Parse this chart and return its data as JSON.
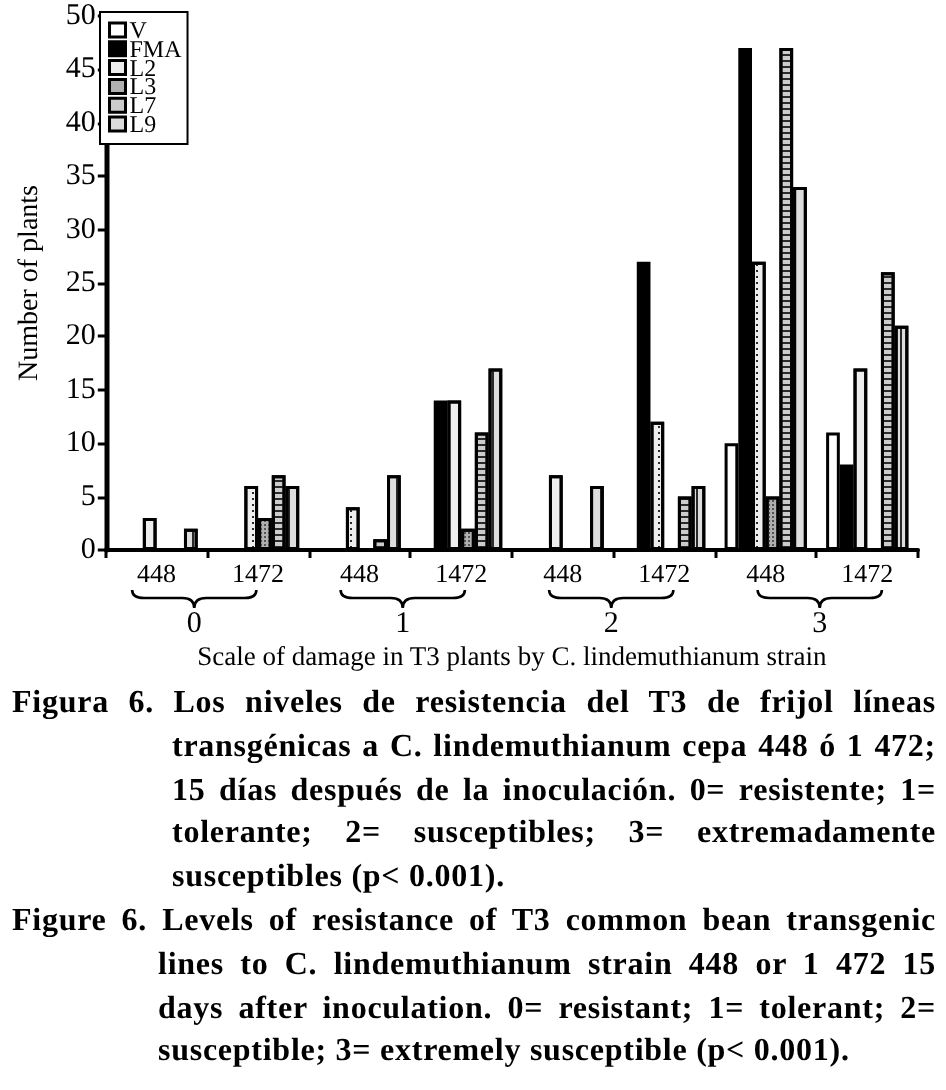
{
  "chart_data": {
    "type": "bar",
    "categories": [
      "448",
      "1472",
      "448",
      "1472",
      "448",
      "1472",
      "448",
      "1472"
    ],
    "series": [
      {
        "name": "V",
        "color": "#ffffff",
        "values": [
          null,
          null,
          null,
          null,
          null,
          null,
          10,
          11
        ]
      },
      {
        "name": "FMA",
        "color": "#000000",
        "values": [
          null,
          null,
          null,
          14,
          null,
          27,
          47,
          8
        ]
      },
      {
        "name": "L2",
        "color": "#eeeeee",
        "values": [
          3,
          6,
          4,
          14,
          7,
          12,
          27,
          17
        ]
      },
      {
        "name": "L3",
        "color": "#b0b0b0",
        "values": [
          null,
          3,
          null,
          2,
          null,
          null,
          5,
          null
        ]
      },
      {
        "name": "L7",
        "color": "#cccccc",
        "values": [
          null,
          7,
          1,
          11,
          null,
          5,
          47,
          26
        ]
      },
      {
        "name": "L9",
        "color": "#dddddd",
        "values": [
          2,
          6,
          7,
          17,
          6,
          6,
          34,
          21
        ]
      }
    ],
    "ylim": [
      0,
      50
    ],
    "yticks": [
      0,
      5,
      10,
      15,
      20,
      25,
      30,
      35,
      40,
      45,
      50
    ],
    "xlabel": "Scale of damage in T3 plants by C. lindemuthianum strain",
    "ylabel": "Number of plants",
    "legend": "top left",
    "annotations": [
      "0",
      "1",
      "2",
      "3",
      "Figura 6. Los niveles de resistencia del T3 de frijol líneas transgénicas a C. lindemuthianum cepa 448 ó 1 472; 15 días después de la inoculación. 0= resistente; 1= tolerante; 2= susceptibles; 3= extremadamente susceptibles (p< 0.001).",
      "Figure 6. Levels of resistance of T3 common bean transgenic lines to C. lindemuthianum strain 448 or 1 472 15 days after inoculation. 0= resistant; 1= tolerant; 2= susceptible; 3= extremely susceptible (p< 0.001)."
    ]
  }
}
